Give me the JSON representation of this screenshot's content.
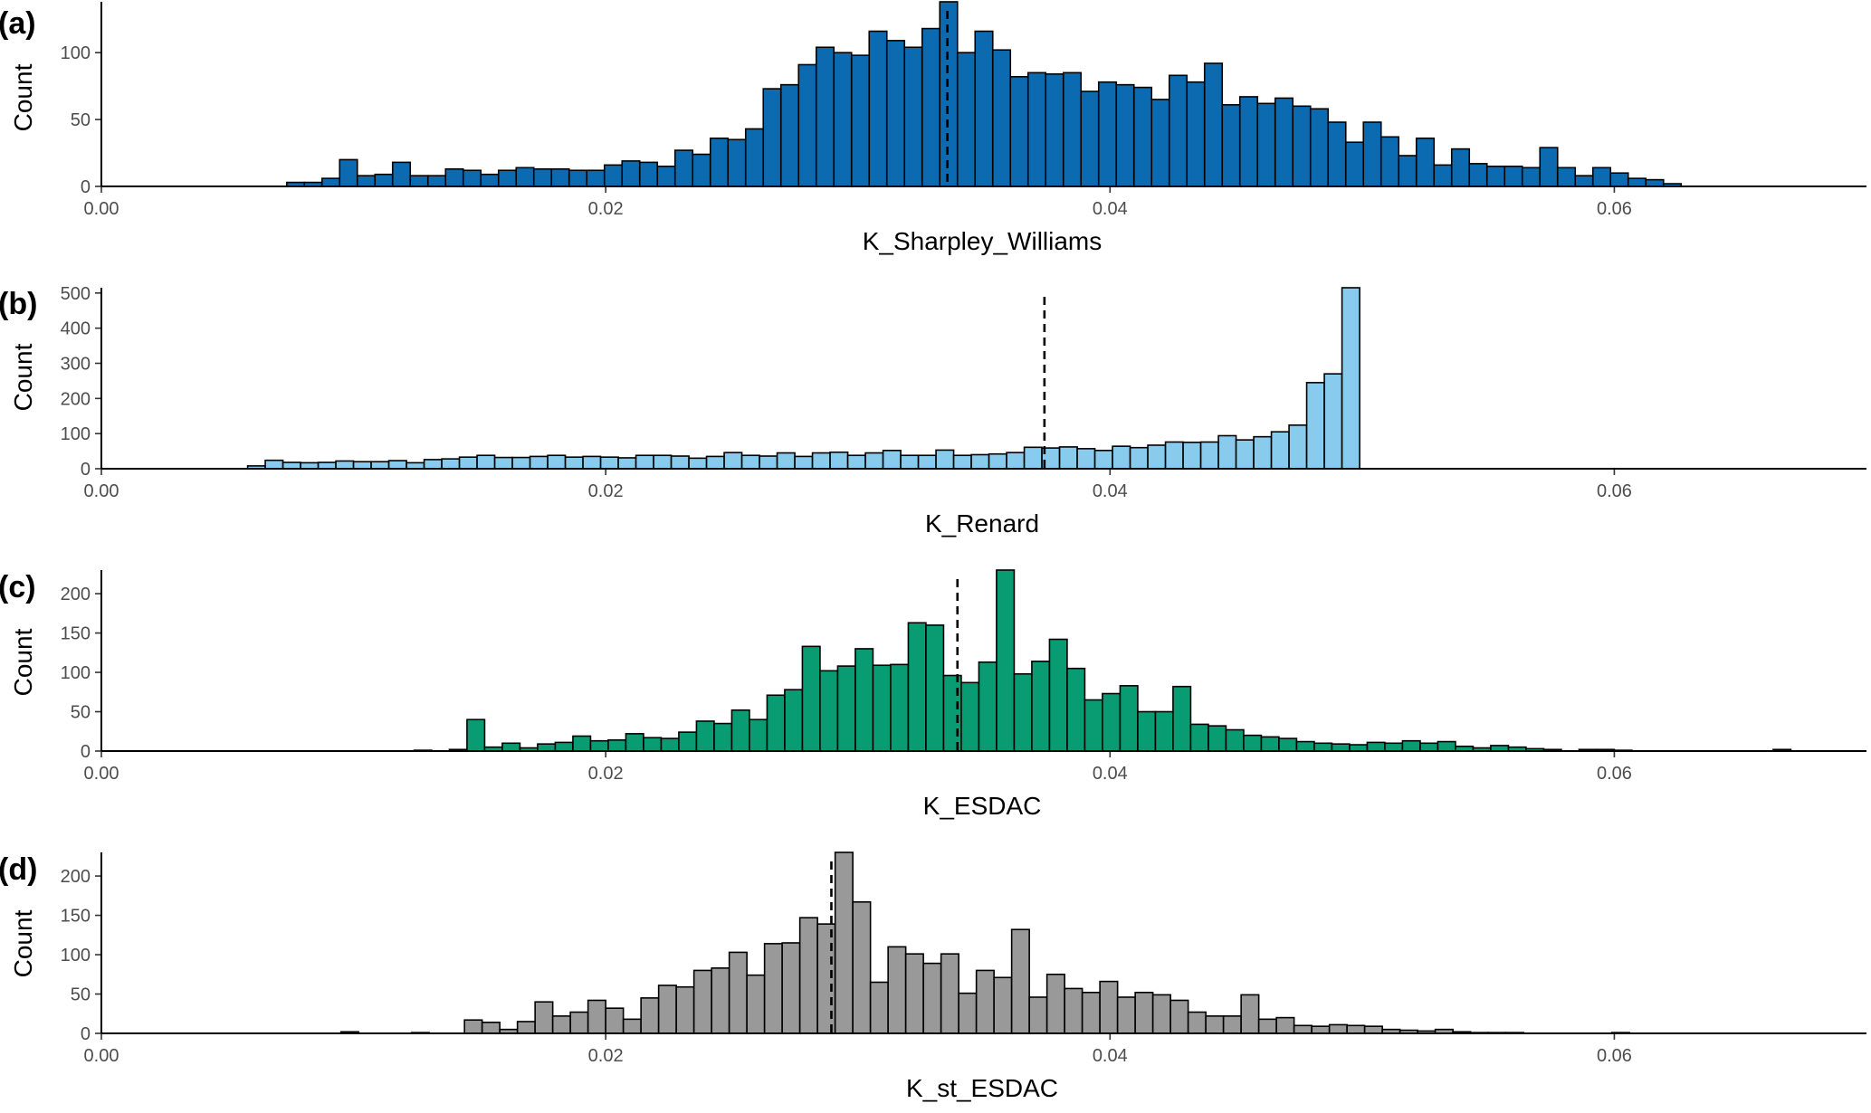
{
  "figure": {
    "background": "#ffffff",
    "bar_outline": "#000000",
    "mean_line_color": "#000000"
  },
  "chart_data": [
    {
      "type": "bar",
      "panel_label": "(a)",
      "xlabel": "K_Sharpley_Williams",
      "ylabel": "Count",
      "fill": "#0c6bb0",
      "xlim": [
        0,
        0.07
      ],
      "ylim": [
        0,
        138
      ],
      "xticks": [
        0,
        0.02,
        0.04,
        0.06
      ],
      "xtick_labels": [
        "0.00",
        "0.02",
        "0.04",
        "0.06"
      ],
      "yticks": [
        0,
        50,
        100
      ],
      "ytick_labels": [
        "0",
        "50",
        "100"
      ],
      "bin_start": 0.00735,
      "bin_width": 0.0007,
      "counts": [
        3,
        3,
        6,
        20,
        8,
        9,
        18,
        8,
        8,
        13,
        12,
        9,
        12,
        14,
        13,
        13,
        12,
        12,
        16,
        19,
        18,
        15,
        27,
        24,
        36,
        35,
        43,
        73,
        76,
        91,
        104,
        100,
        98,
        116,
        109,
        104,
        118,
        138,
        100,
        116,
        102,
        82,
        85,
        84,
        85,
        71,
        78,
        76,
        74,
        65,
        83,
        78,
        92,
        61,
        67,
        62,
        66,
        60,
        58,
        48,
        33,
        48,
        37,
        23,
        36,
        16,
        28,
        17,
        15,
        15,
        14,
        29,
        14,
        8,
        14,
        10,
        6,
        5,
        2
      ],
      "mean": 0.03355
    },
    {
      "type": "bar",
      "panel_label": "(b)",
      "xlabel": "K_Renard",
      "ylabel": "Count",
      "fill": "#89cbec",
      "xlim": [
        0,
        0.07
      ],
      "ylim": [
        0,
        515
      ],
      "xticks": [
        0,
        0.02,
        0.04,
        0.06
      ],
      "xtick_labels": [
        "0.00",
        "0.02",
        "0.04",
        "0.06"
      ],
      "yticks": [
        0,
        100,
        200,
        300,
        400,
        500
      ],
      "ytick_labels": [
        "0",
        "100",
        "200",
        "300",
        "400",
        "500"
      ],
      "bin_start": 0.0058,
      "bin_width": 0.0007,
      "counts": [
        8,
        24,
        18,
        17,
        18,
        22,
        20,
        20,
        23,
        17,
        26,
        28,
        33,
        38,
        32,
        32,
        35,
        38,
        33,
        35,
        33,
        31,
        38,
        38,
        36,
        30,
        35,
        46,
        38,
        36,
        45,
        35,
        45,
        47,
        38,
        45,
        52,
        38,
        38,
        53,
        38,
        40,
        42,
        46,
        61,
        59,
        62,
        57,
        52,
        64,
        60,
        67,
        76,
        75,
        76,
        94,
        82,
        91,
        105,
        124,
        245,
        270,
        515
      ],
      "mean": 0.0374
    },
    {
      "type": "bar",
      "panel_label": "(c)",
      "xlabel": "K_ESDAC",
      "ylabel": "Count",
      "fill": "#099b72",
      "xlim": [
        0,
        0.07
      ],
      "ylim": [
        0,
        230
      ],
      "xticks": [
        0,
        0.02,
        0.04,
        0.06
      ],
      "xtick_labels": [
        "0.00",
        "0.02",
        "0.04",
        "0.06"
      ],
      "yticks": [
        0,
        50,
        100,
        150,
        200
      ],
      "ytick_labels": [
        "0",
        "50",
        "100",
        "150",
        "200"
      ],
      "bin_start": 0.0124,
      "bin_width": 0.0007,
      "counts": [
        1,
        0,
        2,
        40,
        5,
        10,
        4,
        9,
        11,
        19,
        13,
        14,
        22,
        17,
        16,
        24,
        38,
        35,
        52,
        40,
        71,
        78,
        133,
        102,
        108,
        130,
        109,
        110,
        163,
        160,
        96,
        87,
        113,
        230,
        98,
        114,
        142,
        105,
        65,
        73,
        83,
        50,
        50,
        82,
        34,
        32,
        27,
        20,
        18,
        16,
        12,
        10,
        9,
        8,
        11,
        10,
        13,
        10,
        12,
        6,
        4,
        7,
        5,
        3,
        2,
        0,
        2,
        2,
        1,
        0,
        0,
        0,
        0,
        0,
        0,
        0,
        0,
        2
      ],
      "mean": 0.03395
    },
    {
      "type": "bar",
      "panel_label": "(d)",
      "xlabel": "K_st_ESDAC",
      "ylabel": "Count",
      "fill": "#999999",
      "xlim": [
        0,
        0.07
      ],
      "ylim": [
        0,
        230
      ],
      "xticks": [
        0,
        0.02,
        0.04,
        0.06
      ],
      "xtick_labels": [
        "0.00",
        "0.02",
        "0.04",
        "0.06"
      ],
      "yticks": [
        0,
        50,
        100,
        150,
        200
      ],
      "ytick_labels": [
        "0",
        "50",
        "100",
        "150",
        "200"
      ],
      "bin_start": 0.0095,
      "bin_width": 0.0007,
      "counts": [
        2,
        0,
        0,
        0,
        1,
        0,
        0,
        17,
        14,
        5,
        15,
        40,
        22,
        27,
        42,
        32,
        18,
        45,
        61,
        59,
        80,
        83,
        103,
        74,
        114,
        115,
        147,
        139,
        230,
        167,
        65,
        110,
        101,
        89,
        101,
        51,
        80,
        71,
        132,
        46,
        75,
        57,
        52,
        66,
        46,
        52,
        49,
        42,
        27,
        22,
        22,
        49,
        18,
        20,
        10,
        9,
        11,
        10,
        9,
        5,
        4,
        3,
        5,
        2,
        1,
        1,
        1,
        0,
        0,
        0,
        0,
        0,
        1
      ],
      "mean": 0.02895
    }
  ]
}
